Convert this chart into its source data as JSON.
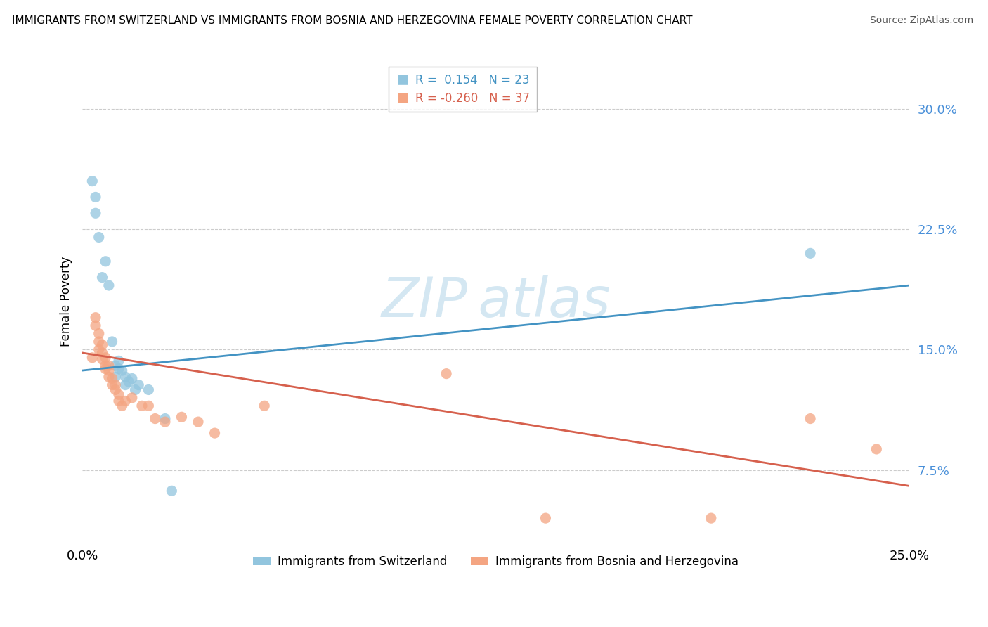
{
  "title": "IMMIGRANTS FROM SWITZERLAND VS IMMIGRANTS FROM BOSNIA AND HERZEGOVINA FEMALE POVERTY CORRELATION CHART",
  "source": "Source: ZipAtlas.com",
  "ylabel": "Female Poverty",
  "yticks": [
    0.075,
    0.15,
    0.225,
    0.3
  ],
  "ytick_labels": [
    "7.5%",
    "15.0%",
    "22.5%",
    "30.0%"
  ],
  "xlim": [
    0.0,
    0.25
  ],
  "ylim": [
    0.03,
    0.33
  ],
  "legend": {
    "series1_label": "Immigrants from Switzerland",
    "series1_R": " 0.154",
    "series1_N": "23",
    "series2_label": "Immigrants from Bosnia and Herzegovina",
    "series2_R": "-0.260",
    "series2_N": "37"
  },
  "blue_color": "#92c5de",
  "pink_color": "#f4a582",
  "blue_line_color": "#4393c3",
  "pink_line_color": "#d6604d",
  "swiss_points": [
    [
      0.003,
      0.255
    ],
    [
      0.004,
      0.245
    ],
    [
      0.004,
      0.235
    ],
    [
      0.005,
      0.22
    ],
    [
      0.006,
      0.195
    ],
    [
      0.007,
      0.205
    ],
    [
      0.008,
      0.19
    ],
    [
      0.009,
      0.155
    ],
    [
      0.01,
      0.14
    ],
    [
      0.01,
      0.133
    ],
    [
      0.011,
      0.143
    ],
    [
      0.011,
      0.138
    ],
    [
      0.012,
      0.137
    ],
    [
      0.013,
      0.133
    ],
    [
      0.013,
      0.128
    ],
    [
      0.014,
      0.13
    ],
    [
      0.015,
      0.132
    ],
    [
      0.016,
      0.125
    ],
    [
      0.017,
      0.128
    ],
    [
      0.02,
      0.125
    ],
    [
      0.025,
      0.107
    ],
    [
      0.027,
      0.062
    ],
    [
      0.22,
      0.21
    ]
  ],
  "bosnia_points": [
    [
      0.003,
      0.145
    ],
    [
      0.004,
      0.17
    ],
    [
      0.004,
      0.165
    ],
    [
      0.005,
      0.16
    ],
    [
      0.005,
      0.155
    ],
    [
      0.005,
      0.15
    ],
    [
      0.006,
      0.153
    ],
    [
      0.006,
      0.148
    ],
    [
      0.006,
      0.144
    ],
    [
      0.007,
      0.145
    ],
    [
      0.007,
      0.14
    ],
    [
      0.007,
      0.138
    ],
    [
      0.008,
      0.14
    ],
    [
      0.008,
      0.137
    ],
    [
      0.008,
      0.133
    ],
    [
      0.009,
      0.132
    ],
    [
      0.009,
      0.128
    ],
    [
      0.01,
      0.128
    ],
    [
      0.01,
      0.125
    ],
    [
      0.011,
      0.122
    ],
    [
      0.011,
      0.118
    ],
    [
      0.012,
      0.115
    ],
    [
      0.013,
      0.118
    ],
    [
      0.015,
      0.12
    ],
    [
      0.018,
      0.115
    ],
    [
      0.02,
      0.115
    ],
    [
      0.022,
      0.107
    ],
    [
      0.025,
      0.105
    ],
    [
      0.03,
      0.108
    ],
    [
      0.035,
      0.105
    ],
    [
      0.04,
      0.098
    ],
    [
      0.055,
      0.115
    ],
    [
      0.11,
      0.135
    ],
    [
      0.14,
      0.045
    ],
    [
      0.19,
      0.045
    ],
    [
      0.22,
      0.107
    ],
    [
      0.24,
      0.088
    ]
  ]
}
